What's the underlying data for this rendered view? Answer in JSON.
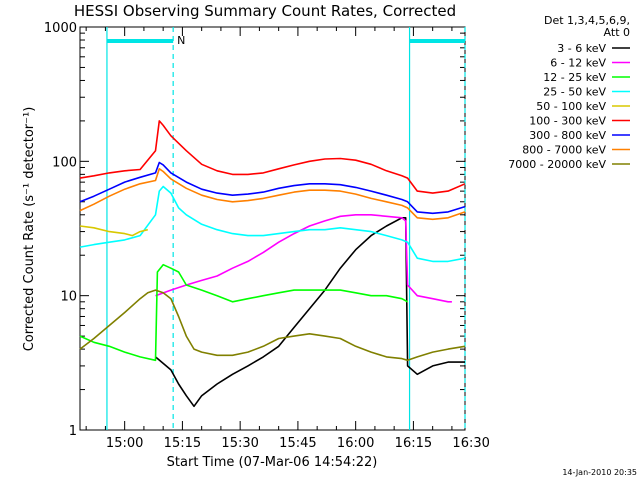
{
  "chart_data": {
    "type": "line",
    "title": "HESSI Observing Summary Count Rates, Corrected",
    "xlabel": "Start Time (07-Mar-06 14:54:22)",
    "ylabel": "Corrected Count Rate (s⁻¹ detector⁻¹)",
    "y_scale": "log",
    "ylim": [
      1,
      1000
    ],
    "xlim_minutes": [
      -11.6,
      83.2
    ],
    "x_ticks": [
      {
        "label": "15:00",
        "minutes": 0
      },
      {
        "label": "15:15",
        "minutes": 15
      },
      {
        "label": "15:30",
        "minutes": 30
      },
      {
        "label": "15:45",
        "minutes": 45
      },
      {
        "label": "16:00",
        "minutes": 60
      },
      {
        "label": "16:15",
        "minutes": 75
      },
      {
        "label": "16:30",
        "minutes": 90
      }
    ],
    "y_ticks": [
      {
        "label": "1",
        "value": 1
      },
      {
        "label": "10",
        "value": 10
      },
      {
        "label": "100",
        "value": 100
      },
      {
        "label": "1000",
        "value": 1000
      }
    ],
    "legend_header": [
      "Det 1,3,4,5,6,9,",
      "Att 0"
    ],
    "legend_position": "right",
    "annotations": {
      "night_flag_label": "N",
      "footer_stamp": "14-Jan-2010 20:35"
    },
    "night_bars_minutes": [
      [
        -4.6,
        12.6
      ],
      [
        74.0,
        88.4
      ]
    ],
    "dashed_lines_minutes": [
      12.6,
      88.4
    ],
    "solid_lines_minutes": [
      -4.6,
      74.0
    ],
    "series": [
      {
        "name": "3 - 6 keV",
        "color": "#000000",
        "points": [
          [
            8,
            3.5
          ],
          [
            12,
            2.8
          ],
          [
            14,
            2.2
          ],
          [
            16,
            1.8
          ],
          [
            18,
            1.5
          ],
          [
            20,
            1.8
          ],
          [
            24,
            2.2
          ],
          [
            28,
            2.6
          ],
          [
            32,
            3.0
          ],
          [
            36,
            3.5
          ],
          [
            40,
            4.2
          ],
          [
            44,
            5.8
          ],
          [
            48,
            8.0
          ],
          [
            52,
            11
          ],
          [
            56,
            16
          ],
          [
            60,
            22
          ],
          [
            64,
            28
          ],
          [
            68,
            33
          ],
          [
            72,
            38
          ],
          [
            73,
            38
          ],
          [
            73.5,
            3.0
          ],
          [
            76,
            2.6
          ],
          [
            80,
            3.0
          ],
          [
            84,
            3.2
          ],
          [
            88.4,
            3.2
          ]
        ]
      },
      {
        "name": "6 - 12 keV",
        "color": "#ff00ff",
        "points": [
          [
            8,
            10
          ],
          [
            12,
            11
          ],
          [
            16,
            12
          ],
          [
            20,
            13
          ],
          [
            24,
            14
          ],
          [
            28,
            16
          ],
          [
            32,
            18
          ],
          [
            36,
            21
          ],
          [
            40,
            25
          ],
          [
            44,
            29
          ],
          [
            48,
            33
          ],
          [
            52,
            36
          ],
          [
            56,
            39
          ],
          [
            60,
            40
          ],
          [
            64,
            40
          ],
          [
            68,
            39
          ],
          [
            72,
            38
          ],
          [
            73,
            36
          ],
          [
            73.5,
            12
          ],
          [
            76,
            10
          ],
          [
            80,
            9.5
          ],
          [
            84,
            9
          ],
          [
            85,
            9
          ]
        ]
      },
      {
        "name": "12 - 25 keV",
        "color": "#00ff00",
        "points": [
          [
            -11.6,
            5.0
          ],
          [
            -8,
            4.5
          ],
          [
            -4,
            4.2
          ],
          [
            0,
            3.8
          ],
          [
            4,
            3.5
          ],
          [
            8,
            3.3
          ],
          [
            8.5,
            15
          ],
          [
            10,
            17
          ],
          [
            12,
            16
          ],
          [
            14,
            15
          ],
          [
            16,
            12
          ],
          [
            20,
            11
          ],
          [
            24,
            10
          ],
          [
            28,
            9
          ],
          [
            32,
            9.5
          ],
          [
            36,
            10
          ],
          [
            40,
            10.5
          ],
          [
            44,
            11
          ],
          [
            48,
            11
          ],
          [
            52,
            11
          ],
          [
            56,
            11
          ],
          [
            60,
            10.5
          ],
          [
            64,
            10
          ],
          [
            68,
            10
          ],
          [
            72,
            9.5
          ],
          [
            73.5,
            9
          ]
        ]
      },
      {
        "name": "25 - 50 keV",
        "color": "#00ffff",
        "points": [
          [
            -11.6,
            23
          ],
          [
            -8,
            24
          ],
          [
            -4,
            25
          ],
          [
            0,
            26
          ],
          [
            4,
            28
          ],
          [
            8,
            40
          ],
          [
            9,
            60
          ],
          [
            10,
            65
          ],
          [
            12,
            58
          ],
          [
            14,
            45
          ],
          [
            16,
            40
          ],
          [
            20,
            34
          ],
          [
            24,
            31
          ],
          [
            28,
            29
          ],
          [
            32,
            28
          ],
          [
            36,
            28
          ],
          [
            40,
            29
          ],
          [
            44,
            30
          ],
          [
            48,
            31
          ],
          [
            52,
            31
          ],
          [
            56,
            32
          ],
          [
            60,
            31
          ],
          [
            64,
            30
          ],
          [
            68,
            28
          ],
          [
            72,
            26
          ],
          [
            73.5,
            25
          ],
          [
            76,
            19
          ],
          [
            80,
            18
          ],
          [
            84,
            18
          ],
          [
            88.4,
            19
          ]
        ]
      },
      {
        "name": "50 - 100 keV",
        "color": "#d8c800",
        "points": [
          [
            -11.6,
            33
          ],
          [
            -8,
            32
          ],
          [
            -4,
            30
          ],
          [
            0,
            29
          ],
          [
            2,
            28
          ],
          [
            4,
            30
          ],
          [
            6,
            31
          ]
        ]
      },
      {
        "name": "100 - 300 keV",
        "color": "#ff0000",
        "points": [
          [
            -11.6,
            75
          ],
          [
            -8,
            78
          ],
          [
            -4,
            82
          ],
          [
            0,
            85
          ],
          [
            4,
            87
          ],
          [
            8,
            120
          ],
          [
            9,
            200
          ],
          [
            10,
            185
          ],
          [
            12,
            155
          ],
          [
            16,
            120
          ],
          [
            20,
            95
          ],
          [
            24,
            85
          ],
          [
            28,
            80
          ],
          [
            32,
            80
          ],
          [
            36,
            82
          ],
          [
            40,
            88
          ],
          [
            44,
            94
          ],
          [
            48,
            100
          ],
          [
            52,
            104
          ],
          [
            56,
            105
          ],
          [
            60,
            102
          ],
          [
            64,
            95
          ],
          [
            68,
            85
          ],
          [
            72,
            78
          ],
          [
            73.5,
            75
          ],
          [
            76,
            60
          ],
          [
            80,
            58
          ],
          [
            84,
            60
          ],
          [
            88.4,
            68
          ]
        ]
      },
      {
        "name": "300 - 800 keV",
        "color": "#0000ff",
        "points": [
          [
            -11.6,
            50
          ],
          [
            -8,
            55
          ],
          [
            -4,
            62
          ],
          [
            0,
            70
          ],
          [
            4,
            76
          ],
          [
            8,
            82
          ],
          [
            9,
            98
          ],
          [
            10,
            94
          ],
          [
            12,
            82
          ],
          [
            16,
            70
          ],
          [
            20,
            62
          ],
          [
            24,
            58
          ],
          [
            28,
            56
          ],
          [
            32,
            57
          ],
          [
            36,
            59
          ],
          [
            40,
            63
          ],
          [
            44,
            66
          ],
          [
            48,
            68
          ],
          [
            52,
            68
          ],
          [
            56,
            67
          ],
          [
            60,
            64
          ],
          [
            64,
            60
          ],
          [
            68,
            56
          ],
          [
            72,
            52
          ],
          [
            73.5,
            50
          ],
          [
            76,
            42
          ],
          [
            80,
            41
          ],
          [
            84,
            42
          ],
          [
            88.4,
            46
          ]
        ]
      },
      {
        "name": "800 - 7000 keV",
        "color": "#ff8000",
        "points": [
          [
            -11.6,
            43
          ],
          [
            -8,
            48
          ],
          [
            -4,
            55
          ],
          [
            0,
            62
          ],
          [
            4,
            68
          ],
          [
            8,
            72
          ],
          [
            9,
            88
          ],
          [
            10,
            84
          ],
          [
            12,
            74
          ],
          [
            16,
            63
          ],
          [
            20,
            56
          ],
          [
            24,
            52
          ],
          [
            28,
            50
          ],
          [
            32,
            51
          ],
          [
            36,
            53
          ],
          [
            40,
            56
          ],
          [
            44,
            59
          ],
          [
            48,
            61
          ],
          [
            52,
            61
          ],
          [
            56,
            60
          ],
          [
            60,
            57
          ],
          [
            64,
            53
          ],
          [
            68,
            50
          ],
          [
            72,
            47
          ],
          [
            73.5,
            45
          ],
          [
            76,
            38
          ],
          [
            80,
            37
          ],
          [
            84,
            38
          ],
          [
            88.4,
            42
          ]
        ]
      },
      {
        "name": "7000 - 20000 keV",
        "color": "#808000",
        "points": [
          [
            -11.6,
            4.0
          ],
          [
            -8,
            4.8
          ],
          [
            -4,
            6.0
          ],
          [
            0,
            7.5
          ],
          [
            4,
            9.5
          ],
          [
            6,
            10.5
          ],
          [
            8,
            11
          ],
          [
            10,
            10.5
          ],
          [
            12,
            9.5
          ],
          [
            14,
            7.0
          ],
          [
            16,
            5.0
          ],
          [
            18,
            4.0
          ],
          [
            20,
            3.8
          ],
          [
            24,
            3.6
          ],
          [
            28,
            3.6
          ],
          [
            32,
            3.8
          ],
          [
            36,
            4.2
          ],
          [
            40,
            4.8
          ],
          [
            44,
            5.0
          ],
          [
            48,
            5.2
          ],
          [
            52,
            5.0
          ],
          [
            56,
            4.8
          ],
          [
            60,
            4.2
          ],
          [
            64,
            3.8
          ],
          [
            68,
            3.5
          ],
          [
            72,
            3.4
          ],
          [
            73.5,
            3.3
          ],
          [
            76,
            3.5
          ],
          [
            80,
            3.8
          ],
          [
            84,
            4.0
          ],
          [
            88.4,
            4.2
          ]
        ]
      }
    ]
  }
}
